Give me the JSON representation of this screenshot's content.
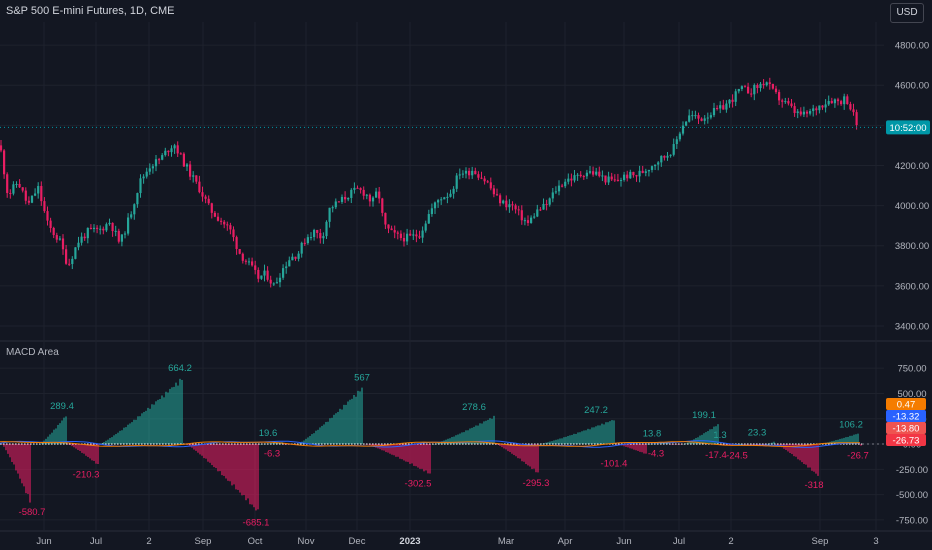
{
  "header": {
    "title": "S&P 500 E-mini Futures, 1D, CME",
    "currency_button": "USD"
  },
  "colors": {
    "background": "#131722",
    "up": "#26a69a",
    "down": "#e91e63",
    "grid": "#1e222d",
    "text": "#b2b5be"
  },
  "price_tag": {
    "label": "10:52:00",
    "color": "#0097a7"
  },
  "indicator": {
    "name": "MACD Area",
    "value_tags": [
      {
        "label": "0.47",
        "color": "#f57c00"
      },
      {
        "label": "-13.32",
        "color": "#2962ff"
      },
      {
        "label": "-13.80",
        "color": "#ef5350"
      },
      {
        "label": "-26.73",
        "color": "#f23645"
      }
    ]
  },
  "chart_data": [
    {
      "type": "candlestick",
      "title": "S&P 500 E-mini Futures, 1D, CME",
      "y_ticks": [
        "4800.00",
        "4600.00",
        "4400.00",
        "4200.00",
        "4000.00",
        "3800.00",
        "3600.00",
        "3400.00"
      ],
      "ylim": [
        3330,
        4915
      ],
      "x_ticks": [
        "Jun",
        "Jul",
        "2",
        "Sep",
        "Oct",
        "Nov",
        "Dec",
        "2023",
        "Mar",
        "Apr",
        "Jun",
        "Jul",
        "2",
        "Sep",
        "3"
      ],
      "grid": true,
      "close_path": [
        [
          0,
          4300
        ],
        [
          8,
          4050
        ],
        [
          18,
          4120
        ],
        [
          28,
          4000
        ],
        [
          38,
          4090
        ],
        [
          48,
          3900
        ],
        [
          60,
          3820
        ],
        [
          68,
          3700
        ],
        [
          78,
          3820
        ],
        [
          88,
          3870
        ],
        [
          100,
          3880
        ],
        [
          110,
          3920
        ],
        [
          120,
          3810
        ],
        [
          130,
          3950
        ],
        [
          140,
          4120
        ],
        [
          150,
          4200
        ],
        [
          160,
          4230
        ],
        [
          168,
          4280
        ],
        [
          174,
          4310
        ],
        [
          182,
          4230
        ],
        [
          190,
          4160
        ],
        [
          200,
          4080
        ],
        [
          210,
          3980
        ],
        [
          220,
          3930
        ],
        [
          230,
          3880
        ],
        [
          240,
          3760
        ],
        [
          250,
          3700
        ],
        [
          258,
          3640
        ],
        [
          266,
          3660
        ],
        [
          274,
          3600
        ],
        [
          282,
          3680
        ],
        [
          290,
          3740
        ],
        [
          298,
          3760
        ],
        [
          306,
          3840
        ],
        [
          314,
          3870
        ],
        [
          322,
          3840
        ],
        [
          330,
          3990
        ],
        [
          340,
          4020
        ],
        [
          350,
          4060
        ],
        [
          358,
          4080
        ],
        [
          366,
          4060
        ],
        [
          372,
          4010
        ],
        [
          378,
          4080
        ],
        [
          384,
          3900
        ],
        [
          392,
          3860
        ],
        [
          400,
          3840
        ],
        [
          410,
          3840
        ],
        [
          420,
          3860
        ],
        [
          430,
          3970
        ],
        [
          440,
          4040
        ],
        [
          450,
          4060
        ],
        [
          460,
          4170
        ],
        [
          466,
          4160
        ],
        [
          472,
          4180
        ],
        [
          480,
          4150
        ],
        [
          488,
          4110
        ],
        [
          496,
          4040
        ],
        [
          504,
          4010
        ],
        [
          512,
          4000
        ],
        [
          520,
          3950
        ],
        [
          528,
          3910
        ],
        [
          536,
          3970
        ],
        [
          546,
          4000
        ],
        [
          556,
          4080
        ],
        [
          566,
          4130
        ],
        [
          576,
          4140
        ],
        [
          586,
          4170
        ],
        [
          596,
          4160
        ],
        [
          606,
          4130
        ],
        [
          616,
          4120
        ],
        [
          626,
          4150
        ],
        [
          636,
          4150
        ],
        [
          646,
          4180
        ],
        [
          656,
          4220
        ],
        [
          666,
          4250
        ],
        [
          674,
          4290
        ],
        [
          682,
          4400
        ],
        [
          690,
          4450
        ],
        [
          700,
          4430
        ],
        [
          710,
          4460
        ],
        [
          720,
          4480
        ],
        [
          730,
          4520
        ],
        [
          740,
          4580
        ],
        [
          750,
          4570
        ],
        [
          760,
          4600
        ],
        [
          766,
          4620
        ],
        [
          772,
          4570
        ],
        [
          780,
          4530
        ],
        [
          788,
          4500
        ],
        [
          796,
          4460
        ],
        [
          804,
          4450
        ],
        [
          812,
          4470
        ],
        [
          820,
          4500
        ],
        [
          830,
          4530
        ],
        [
          840,
          4520
        ],
        [
          846,
          4540
        ],
        [
          852,
          4470
        ],
        [
          858,
          4390
        ]
      ]
    },
    {
      "type": "histogram",
      "title": "MACD Area",
      "y_ticks": [
        "750.00",
        "500.00",
        "250.00",
        "0.00",
        "-250.00",
        "-500.00",
        "-750.00"
      ],
      "ylim": [
        -850,
        910
      ],
      "segments": [
        {
          "start": 2,
          "end": 30,
          "peak": -580.7
        },
        {
          "start": 40,
          "end": 66,
          "peak": 289.4
        },
        {
          "start": 68,
          "end": 98,
          "peak": -210.3
        },
        {
          "start": 100,
          "end": 182,
          "peak": 664.2
        },
        {
          "start": 186,
          "end": 258,
          "peak": -685.1
        },
        {
          "start": 260,
          "end": 282,
          "peak": 19.6
        },
        {
          "start": 284,
          "end": 296,
          "peak": -6.3
        },
        {
          "start": 298,
          "end": 362,
          "peak": 567
        },
        {
          "start": 366,
          "end": 430,
          "peak": -302.5
        },
        {
          "start": 434,
          "end": 494,
          "peak": 278.6
        },
        {
          "start": 496,
          "end": 538,
          "peak": -295.3
        },
        {
          "start": 540,
          "end": 614,
          "peak": 247.2
        },
        {
          "start": 616,
          "end": 646,
          "peak": -101.4
        },
        {
          "start": 648,
          "end": 668,
          "peak": 13.8
        },
        {
          "start": 670,
          "end": 682,
          "peak": -4.3
        },
        {
          "start": 684,
          "end": 718,
          "peak": 199.1
        },
        {
          "start": 720,
          "end": 732,
          "peak": -17.4
        },
        {
          "start": 734,
          "end": 742,
          "peak": 1.3
        },
        {
          "start": 744,
          "end": 766,
          "peak": -24.5
        },
        {
          "start": 768,
          "end": 774,
          "peak": 23.3
        },
        {
          "start": 776,
          "end": 818,
          "peak": -318
        },
        {
          "start": 820,
          "end": 858,
          "peak": 106.2
        },
        {
          "start": 859,
          "end": 862,
          "peak": -26.7
        }
      ],
      "data_labels": [
        {
          "text": "664.2",
          "x": 180,
          "value": 664.2
        },
        {
          "text": "567",
          "x": 362,
          "value": 567
        },
        {
          "text": "289.4",
          "x": 62,
          "value": 289.4
        },
        {
          "text": "278.6",
          "x": 474,
          "value": 278.6
        },
        {
          "text": "247.2",
          "x": 596,
          "value": 247.2
        },
        {
          "text": "199.1",
          "x": 704,
          "value": 199.1
        },
        {
          "text": "19.6",
          "x": 268,
          "value": 19.6
        },
        {
          "text": "13.8",
          "x": 652,
          "value": 13.8
        },
        {
          "text": "1.3",
          "x": 720,
          "value": 1.3
        },
        {
          "text": "23.3",
          "x": 757,
          "value": 23.3
        },
        {
          "text": "106.2",
          "x": 851,
          "value": 106.2
        },
        {
          "text": "-6.3",
          "x": 272,
          "value": -6.3
        },
        {
          "text": "-4.3",
          "x": 656,
          "value": -4.3
        },
        {
          "text": "-17.4",
          "x": 716,
          "value": -17.4
        },
        {
          "text": "-24.5",
          "x": 737,
          "value": -24.5
        },
        {
          "text": "-26.7",
          "x": 858,
          "value": -26.7
        },
        {
          "text": "-210.3",
          "x": 86,
          "value": -210.3
        },
        {
          "text": "-302.5",
          "x": 418,
          "value": -302.5
        },
        {
          "text": "-295.3",
          "x": 536,
          "value": -295.3
        },
        {
          "text": "-101.4",
          "x": 614,
          "value": -101.4
        },
        {
          "text": "-318",
          "x": 814,
          "value": -318
        },
        {
          "text": "-580.7",
          "x": 32,
          "value": -580.7
        },
        {
          "text": "-685.1",
          "x": 256,
          "value": -685.1
        }
      ]
    }
  ]
}
